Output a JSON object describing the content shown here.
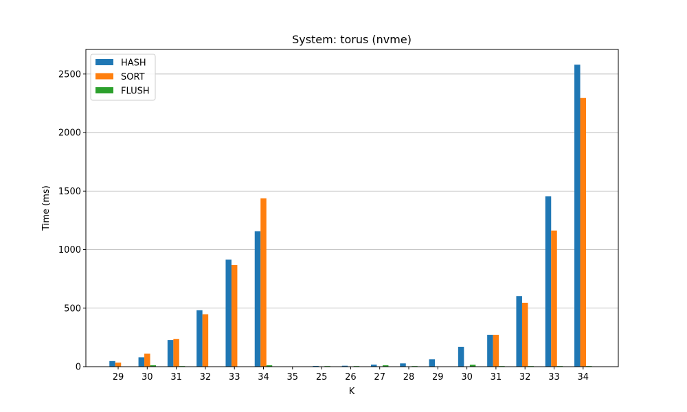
{
  "chart_data": {
    "type": "bar",
    "title": "System: torus (nvme)",
    "xlabel": "K",
    "ylabel": "Time (ms)",
    "ylim": [
      0,
      2710
    ],
    "yticks": [
      0,
      500,
      1000,
      1500,
      2000,
      2500
    ],
    "grid": "horizontal",
    "legend_position": "top-left",
    "categories": [
      "29",
      "30",
      "31",
      "32",
      "33",
      "34",
      "35",
      "25",
      "26",
      "27",
      "28",
      "29",
      "30",
      "31",
      "32",
      "33",
      "34"
    ],
    "series": [
      {
        "name": "HASH",
        "color": "#1f77b4",
        "values": [
          48,
          80,
          228,
          482,
          915,
          1157,
          0,
          6,
          8,
          18,
          28,
          63,
          170,
          271,
          603,
          1455,
          2580
        ]
      },
      {
        "name": "SORT",
        "color": "#ff7f0e",
        "values": [
          35,
          112,
          236,
          448,
          868,
          1438,
          0,
          0,
          0,
          0,
          0,
          0,
          0,
          271,
          546,
          1163,
          2295
        ]
      },
      {
        "name": "FLUSH",
        "color": "#2ca02c",
        "values": [
          0,
          12,
          5,
          0,
          0,
          12,
          0,
          5,
          5,
          12,
          5,
          0,
          17,
          5,
          5,
          5,
          5
        ]
      }
    ]
  }
}
